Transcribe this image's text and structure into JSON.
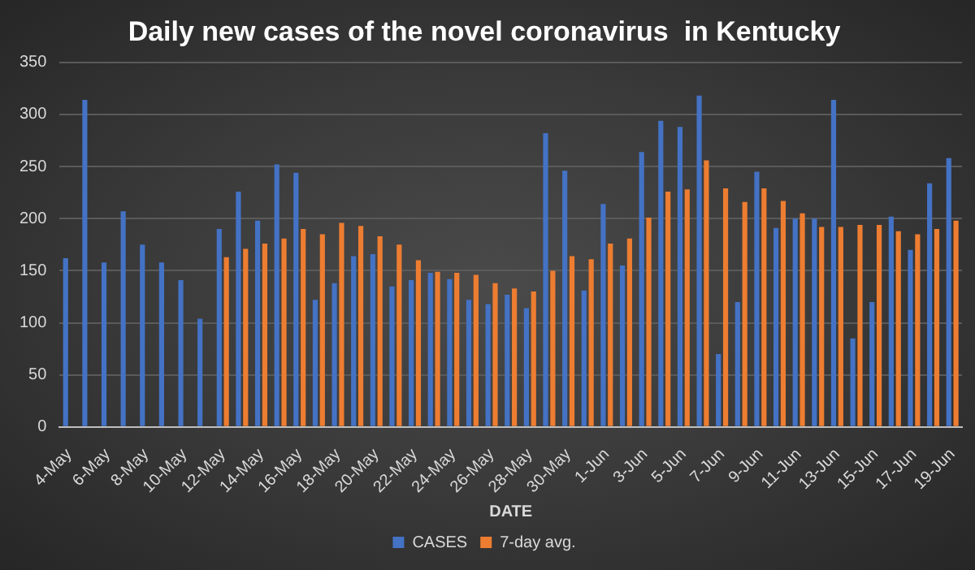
{
  "chart_data": {
    "type": "bar",
    "title": "Daily new cases of the novel coronavirus  in Kentucky",
    "xlabel": "DATE",
    "categories": [
      "4-May",
      null,
      "6-May",
      null,
      "8-May",
      null,
      "10-May",
      null,
      "12-May",
      null,
      "14-May",
      null,
      "16-May",
      null,
      "18-May",
      null,
      "20-May",
      null,
      "22-May",
      null,
      "24-May",
      null,
      "26-May",
      null,
      "28-May",
      null,
      "30-May",
      null,
      "1-Jun",
      null,
      "3-Jun",
      null,
      "5-Jun",
      null,
      "7-Jun",
      null,
      "9-Jun",
      null,
      "11-Jun",
      null,
      "13-Jun",
      null,
      "15-Jun",
      null,
      "17-Jun",
      null,
      "19-Jun"
    ],
    "series": [
      {
        "name": "CASES",
        "color": "#4472c4",
        "values": [
          162,
          314,
          158,
          207,
          175,
          158,
          141,
          104,
          190,
          226,
          198,
          252,
          244,
          122,
          138,
          164,
          166,
          135,
          141,
          148,
          142,
          122,
          118,
          127,
          114,
          282,
          246,
          131,
          214,
          155,
          264,
          294,
          288,
          318,
          70,
          120,
          245,
          191,
          200,
          200,
          314,
          85,
          120,
          202,
          170,
          234,
          258
        ]
      },
      {
        "name": "7-day avg.",
        "color": "#ed7d31",
        "values": [
          null,
          null,
          null,
          null,
          null,
          null,
          null,
          null,
          163,
          171,
          176,
          181,
          190,
          185,
          196,
          193,
          183,
          175,
          160,
          149,
          148,
          146,
          138,
          133,
          130,
          150,
          164,
          161,
          176,
          181,
          201,
          226,
          228,
          256,
          229,
          216,
          229,
          217,
          205,
          192,
          192,
          194,
          194,
          188,
          185,
          190,
          198
        ]
      }
    ],
    "ylim": [
      0,
      350
    ],
    "yticks": [
      0,
      50,
      100,
      150,
      200,
      250,
      300,
      350
    ],
    "grid": "y",
    "legend": "bottom"
  }
}
